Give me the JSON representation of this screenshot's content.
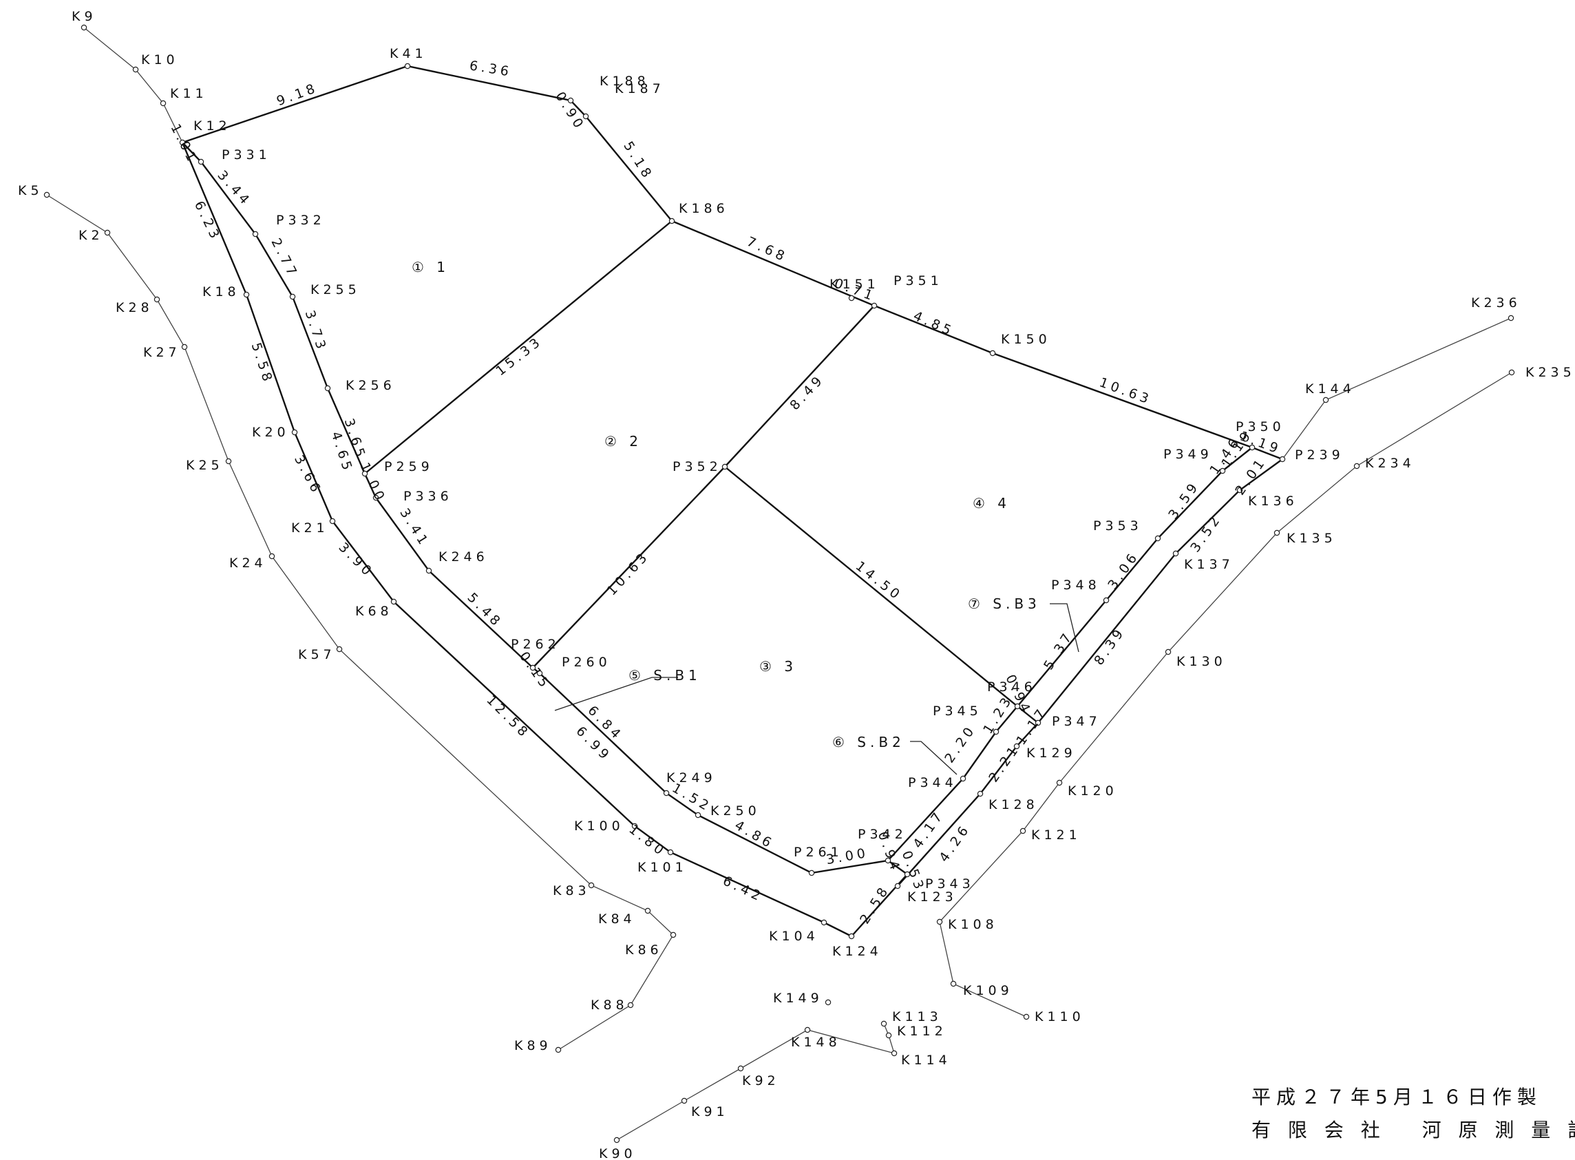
{
  "credits": {
    "date": "平成２７年5月１６日作製",
    "company": "有 限 会 社　 河 原 測 量 設 計"
  },
  "points": [
    "K9",
    "K10",
    "K11",
    "K12",
    "K41",
    "K188",
    "K187",
    "P331",
    "K5",
    "K2",
    "P332",
    "K186",
    "K28",
    "K18",
    "K255",
    "K27",
    "K151",
    "P351",
    "K256",
    "K150",
    "K20",
    "P259",
    "P352",
    "K25",
    "P336",
    "K21",
    "K24",
    "K68",
    "K246",
    "K57",
    "P262",
    "P260",
    "K249",
    "K250",
    "K100",
    "K101",
    "K83",
    "K84",
    "K86",
    "K88",
    "K89",
    "K104",
    "K124",
    "K149",
    "K113",
    "K112",
    "K148",
    "K114",
    "K92",
    "K91",
    "K90",
    "P261",
    "P342",
    "P343",
    "K123",
    "K108",
    "K109",
    "K110",
    "P344",
    "P345",
    "K128",
    "K129",
    "P346",
    "P347",
    "K121",
    "K120",
    "K130",
    "K137",
    "P348",
    "P353",
    "P349",
    "K136",
    "P350",
    "P239",
    "K144",
    "K234",
    "K135",
    "K236",
    "K235"
  ],
  "distances": [
    "9.18",
    "6.36",
    "0.90",
    "5.18",
    "1.01",
    "3.44",
    "2.77",
    "6.23",
    "7.68",
    "0.71",
    "4.85",
    "10.63",
    "15.33",
    "3.73",
    "5.58",
    "3.65",
    "1.00",
    "4.65",
    "3.66",
    "8.49",
    "3.41",
    "3.90",
    "5.48",
    "10.63",
    "14.50",
    "0.15",
    "6.84",
    "6.99",
    "12.58",
    "1.52",
    "4.86",
    "1.80",
    "6.42",
    "3.00",
    "0.94",
    "0.53",
    "4.17",
    "2.58",
    "1.19",
    "2.20",
    "1.23",
    "0.94",
    "5.37",
    "3.06",
    "3.59",
    "1.46",
    "1.19",
    "2.01",
    "3.52",
    "8.39",
    "2.21",
    "1.17",
    "4.26"
  ],
  "areas": [
    "① 1",
    "② 2",
    "③ 3",
    "④ 4",
    "⑤ S.B1",
    "⑥ S.B2",
    "⑦ S.B3"
  ]
}
